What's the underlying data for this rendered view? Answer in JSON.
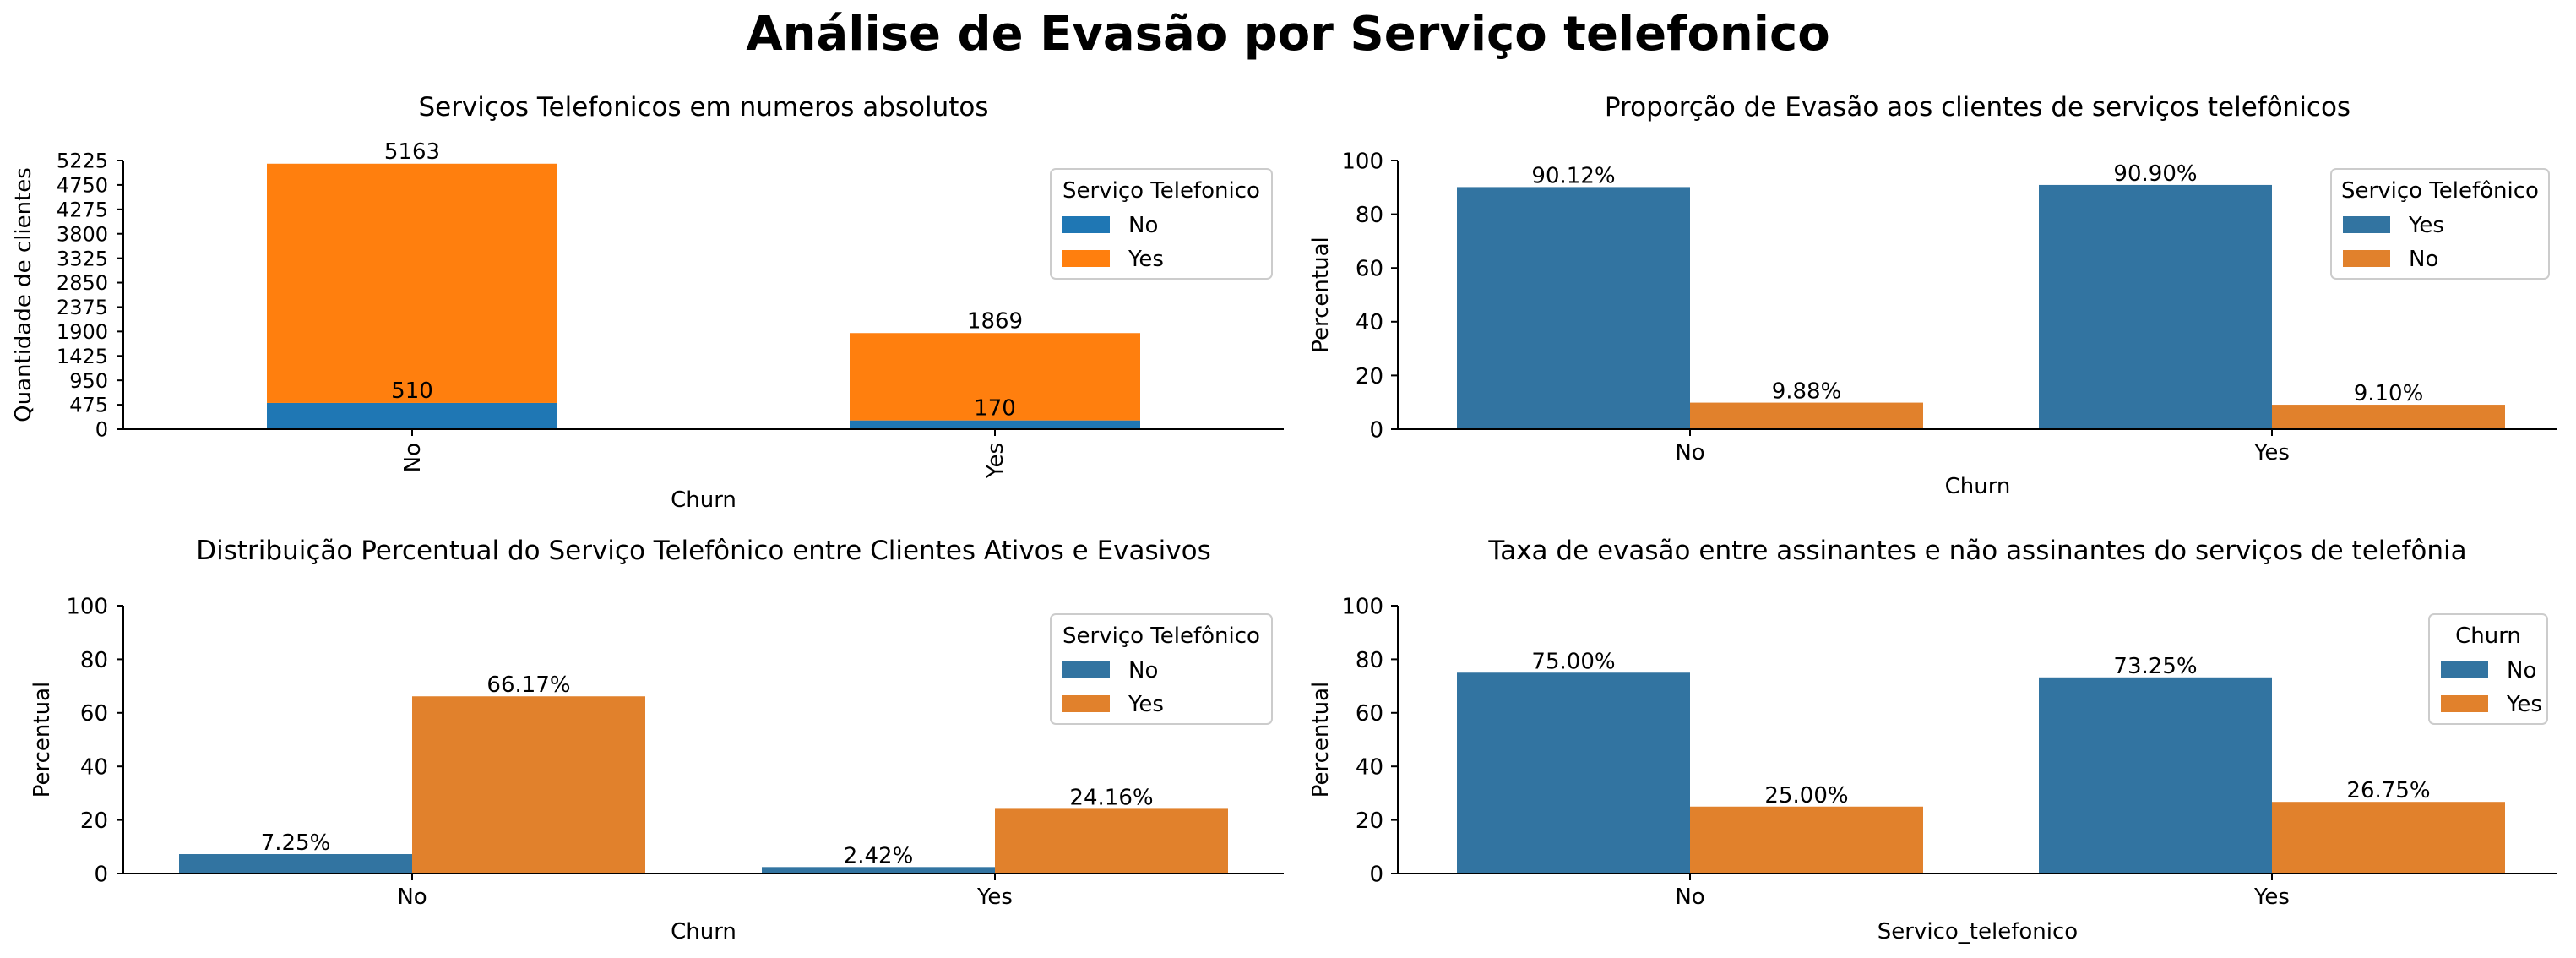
{
  "suptitle": "Análise de Evasão por Serviço telefonico",
  "chart_data": [
    {
      "type": "bar",
      "stacked": true,
      "title": "Serviços Telefonicos em numeros absolutos",
      "xlabel": "Churn",
      "ylabel": "Quantidade de clientes",
      "categories": [
        "No",
        "Yes"
      ],
      "category_label_rotation": 90,
      "series": [
        {
          "name": "No",
          "color": "#1f77b4",
          "values": [
            510,
            170
          ]
        },
        {
          "name": "Yes",
          "color": "#ff7f0e",
          "values": [
            4653,
            1699
          ]
        }
      ],
      "data_labels": [
        {
          "category": "No",
          "text": "510",
          "at": 510
        },
        {
          "category": "No",
          "text": "5163",
          "at": 5163
        },
        {
          "category": "Yes",
          "text": "170",
          "at": 170
        },
        {
          "category": "Yes",
          "text": "1869",
          "at": 1869
        }
      ],
      "ylim": [
        0,
        5225
      ],
      "yticks": [
        0,
        475,
        950,
        1425,
        1900,
        2375,
        2850,
        3325,
        3800,
        4275,
        4750,
        5225
      ],
      "legend": {
        "title": "Serviço Telefonico",
        "placement": "top-right"
      },
      "grid": false
    },
    {
      "type": "bar",
      "title": "Proporção de Evasão aos clientes de serviços telefônicos",
      "xlabel": "Churn",
      "ylabel": "Percentual",
      "categories": [
        "No",
        "Yes"
      ],
      "series": [
        {
          "name": "Yes",
          "color": "#3274a1",
          "values": [
            90.12,
            90.9
          ],
          "labels": [
            "90.12%",
            "90.90%"
          ]
        },
        {
          "name": "No",
          "color": "#e1812c",
          "values": [
            9.88,
            9.1
          ],
          "labels": [
            "9.88%",
            "9.10%"
          ]
        }
      ],
      "ylim": [
        0,
        100
      ],
      "yticks": [
        0,
        20,
        40,
        60,
        80,
        100
      ],
      "legend": {
        "title": "Serviço Telefônico",
        "placement": "top-right"
      },
      "grid": false
    },
    {
      "type": "bar",
      "title": "Distribuição Percentual do Serviço Telefônico entre Clientes Ativos e Evasivos",
      "xlabel": "Churn",
      "ylabel": "Percentual",
      "categories": [
        "No",
        "Yes"
      ],
      "series": [
        {
          "name": "No",
          "color": "#3274a1",
          "values": [
            7.25,
            2.42
          ],
          "labels": [
            "7.25%",
            "2.42%"
          ]
        },
        {
          "name": "Yes",
          "color": "#e1812c",
          "values": [
            66.17,
            24.16
          ],
          "labels": [
            "66.17%",
            "24.16%"
          ]
        }
      ],
      "ylim": [
        0,
        100
      ],
      "yticks": [
        0,
        20,
        40,
        60,
        80,
        100
      ],
      "legend": {
        "title": "Serviço Telefônico",
        "placement": "top-right"
      },
      "grid": false
    },
    {
      "type": "bar",
      "title": "Taxa de evasão entre assinantes e não assinantes do serviços de telefônia",
      "xlabel": "Servico_telefonico",
      "ylabel": "Percentual",
      "categories": [
        "No",
        "Yes"
      ],
      "series": [
        {
          "name": "No",
          "color": "#3274a1",
          "values": [
            75.0,
            73.25
          ],
          "labels": [
            "75.00%",
            "73.25%"
          ]
        },
        {
          "name": "Yes",
          "color": "#e1812c",
          "values": [
            25.0,
            26.75
          ],
          "labels": [
            "25.00%",
            "26.75%"
          ]
        }
      ],
      "ylim": [
        0,
        100
      ],
      "yticks": [
        0,
        20,
        40,
        60,
        80,
        100
      ],
      "legend": {
        "title": "Churn",
        "placement": "top-right"
      },
      "grid": false
    }
  ]
}
